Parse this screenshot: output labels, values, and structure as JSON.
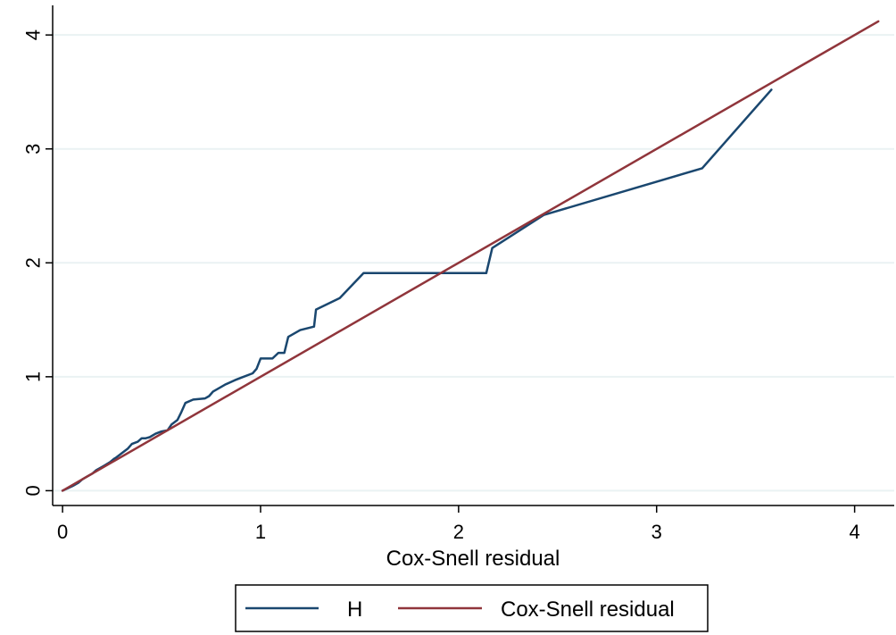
{
  "chart_data": {
    "type": "line",
    "xlabel": "Cox-Snell residual",
    "ylabel": "",
    "xlim": [
      -0.05,
      4.2
    ],
    "ylim": [
      -0.13,
      4.26
    ],
    "x_ticks": [
      "0",
      "1",
      "2",
      "3",
      "4"
    ],
    "y_ticks": [
      "0",
      "1",
      "2",
      "3",
      "4"
    ],
    "grid": "horizontal",
    "legend_position": "bottom",
    "series": [
      {
        "name": "H",
        "color": "#1a476f",
        "x": [
          0.0,
          0.05,
          0.08,
          0.1,
          0.12,
          0.15,
          0.17,
          0.19,
          0.21,
          0.24,
          0.26,
          0.27,
          0.3,
          0.33,
          0.35,
          0.38,
          0.4,
          0.42,
          0.44,
          0.47,
          0.5,
          0.53,
          0.55,
          0.58,
          0.6,
          0.62,
          0.66,
          0.72,
          0.74,
          0.76,
          0.82,
          0.87,
          0.9,
          0.96,
          0.98,
          1.0,
          1.06,
          1.09,
          1.12,
          1.14,
          1.2,
          1.27,
          1.28,
          1.4,
          1.52,
          2.14,
          2.17,
          2.43,
          3.23,
          3.58
        ],
        "y": [
          0.0,
          0.04,
          0.07,
          0.1,
          0.12,
          0.15,
          0.18,
          0.2,
          0.22,
          0.25,
          0.28,
          0.29,
          0.33,
          0.37,
          0.41,
          0.43,
          0.46,
          0.46,
          0.47,
          0.5,
          0.52,
          0.53,
          0.58,
          0.62,
          0.69,
          0.77,
          0.8,
          0.81,
          0.83,
          0.87,
          0.93,
          0.97,
          0.99,
          1.03,
          1.07,
          1.16,
          1.16,
          1.21,
          1.21,
          1.35,
          1.41,
          1.44,
          1.59,
          1.69,
          1.91,
          1.91,
          2.13,
          2.42,
          2.83,
          3.52
        ]
      },
      {
        "name": "Cox-Snell residual",
        "color": "#90353b",
        "x": [
          0.0,
          4.12
        ],
        "y": [
          0.0,
          4.12
        ]
      }
    ]
  },
  "legend": {
    "items": [
      {
        "label": "H"
      },
      {
        "label": "Cox-Snell residual"
      }
    ]
  }
}
